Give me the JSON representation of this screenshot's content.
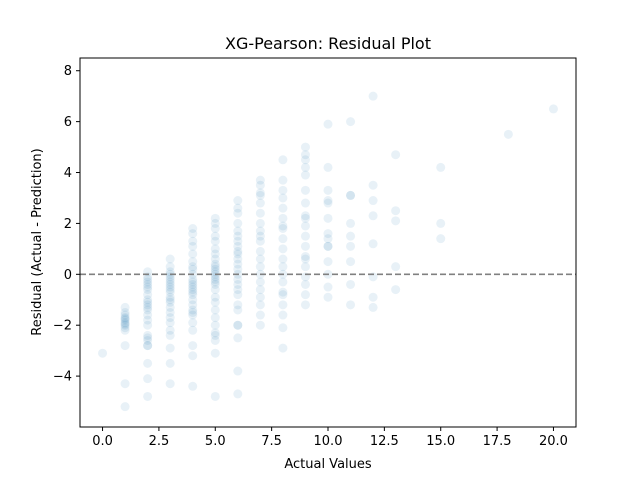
{
  "chart_data": {
    "type": "scatter",
    "title": "XG-Pearson: Residual Plot",
    "xlabel": "Actual Values",
    "ylabel": "Residual (Actual - Prediction)",
    "xlim": [
      -1,
      21
    ],
    "ylim": [
      -6,
      8.5
    ],
    "xticks": [
      0,
      2.5,
      5,
      7.5,
      10,
      12.5,
      15,
      17.5,
      20
    ],
    "xtick_labels": [
      "0.0",
      "2.5",
      "5.0",
      "7.5",
      "10.0",
      "12.5",
      "15.0",
      "17.5",
      "20.0"
    ],
    "yticks": [
      -4,
      -2,
      0,
      2,
      4,
      6,
      8
    ],
    "ytick_labels": [
      "−4",
      "−2",
      "0",
      "2",
      "4",
      "6",
      "8"
    ],
    "grid": false,
    "reference_line": {
      "y": 0,
      "style": "dashed",
      "color": "#808080"
    },
    "marker_color": "#1f77b4",
    "marker_alpha": 0.1,
    "series": [
      {
        "points": [
          [
            0,
            -3.1
          ],
          [
            1,
            -5.2
          ],
          [
            1,
            -4.3
          ],
          [
            1,
            -2.8
          ],
          [
            1,
            -2.2
          ],
          [
            1,
            -2.0
          ],
          [
            1,
            -1.9
          ],
          [
            1,
            -1.8
          ],
          [
            1,
            -1.7
          ],
          [
            1,
            -1.6
          ],
          [
            1,
            -1.5
          ],
          [
            1,
            -1.3
          ],
          [
            1,
            -2.1
          ],
          [
            1,
            -1.95
          ],
          [
            1,
            -1.75
          ],
          [
            2,
            -4.8
          ],
          [
            2,
            -4.1
          ],
          [
            2,
            -3.5
          ],
          [
            2,
            -2.8
          ],
          [
            2,
            -2.8
          ],
          [
            2,
            -2.5
          ],
          [
            2,
            -2.4
          ],
          [
            2,
            -2.0
          ],
          [
            2,
            -1.8
          ],
          [
            2,
            -1.6
          ],
          [
            2,
            -1.4
          ],
          [
            2,
            -1.3
          ],
          [
            2,
            -1.2
          ],
          [
            2,
            -1.0
          ],
          [
            2,
            -0.6
          ],
          [
            2,
            -0.4
          ],
          [
            2,
            -0.3
          ],
          [
            2,
            -0.2
          ],
          [
            2,
            -0.1
          ],
          [
            2,
            0.1
          ],
          [
            2,
            -0.5
          ],
          [
            2,
            -0.8
          ],
          [
            2,
            -1.1
          ],
          [
            2,
            -2.6
          ],
          [
            3,
            -4.3
          ],
          [
            3,
            -3.5
          ],
          [
            3,
            -2.9
          ],
          [
            3,
            -2.4
          ],
          [
            3,
            -2.2
          ],
          [
            3,
            -1.9
          ],
          [
            3,
            -1.7
          ],
          [
            3,
            -1.5
          ],
          [
            3,
            -1.3
          ],
          [
            3,
            -1.1
          ],
          [
            3,
            -0.9
          ],
          [
            3,
            -0.7
          ],
          [
            3,
            -0.6
          ],
          [
            3,
            -0.4
          ],
          [
            3,
            -0.3
          ],
          [
            3,
            -0.2
          ],
          [
            3,
            -0.1
          ],
          [
            3,
            0.0
          ],
          [
            3,
            0.1
          ],
          [
            3,
            0.3
          ],
          [
            3,
            0.6
          ],
          [
            3,
            -0.5
          ],
          [
            3,
            -1.0
          ],
          [
            4,
            -4.4
          ],
          [
            4,
            -3.2
          ],
          [
            4,
            -2.8
          ],
          [
            4,
            -2.2
          ],
          [
            4,
            -1.9
          ],
          [
            4,
            -1.6
          ],
          [
            4,
            -1.4
          ],
          [
            4,
            -1.2
          ],
          [
            4,
            -1.0
          ],
          [
            4,
            -0.8
          ],
          [
            4,
            -0.6
          ],
          [
            4,
            -0.5
          ],
          [
            4,
            -0.4
          ],
          [
            4,
            -0.3
          ],
          [
            4,
            -0.2
          ],
          [
            4,
            0.0
          ],
          [
            4,
            0.2
          ],
          [
            4,
            0.3
          ],
          [
            4,
            0.5
          ],
          [
            4,
            0.8
          ],
          [
            4,
            1.1
          ],
          [
            4,
            1.3
          ],
          [
            4,
            1.6
          ],
          [
            4,
            1.8
          ],
          [
            4,
            -0.7
          ],
          [
            4,
            -1.5
          ],
          [
            5,
            -4.8
          ],
          [
            5,
            -3.1
          ],
          [
            5,
            -2.6
          ],
          [
            5,
            -2.4
          ],
          [
            5,
            -2.3
          ],
          [
            5,
            -2.0
          ],
          [
            5,
            -1.7
          ],
          [
            5,
            -1.4
          ],
          [
            5,
            -1.1
          ],
          [
            5,
            -0.9
          ],
          [
            5,
            -0.6
          ],
          [
            5,
            -0.4
          ],
          [
            5,
            -0.3
          ],
          [
            5,
            -0.1
          ],
          [
            5,
            0.0
          ],
          [
            5,
            0.2
          ],
          [
            5,
            0.3
          ],
          [
            5,
            0.4
          ],
          [
            5,
            0.6
          ],
          [
            5,
            0.8
          ],
          [
            5,
            1.0
          ],
          [
            5,
            1.3
          ],
          [
            5,
            1.5
          ],
          [
            5,
            1.8
          ],
          [
            5,
            2.0
          ],
          [
            5,
            2.2
          ],
          [
            5,
            -0.2
          ],
          [
            5,
            0.1
          ],
          [
            6,
            -4.7
          ],
          [
            6,
            -3.8
          ],
          [
            6,
            -2.5
          ],
          [
            6,
            -2.0
          ],
          [
            6,
            -2.0
          ],
          [
            6,
            -1.4
          ],
          [
            6,
            -1.2
          ],
          [
            6,
            -0.8
          ],
          [
            6,
            -0.4
          ],
          [
            6,
            -0.2
          ],
          [
            6,
            0.0
          ],
          [
            6,
            0.2
          ],
          [
            6,
            0.4
          ],
          [
            6,
            0.6
          ],
          [
            6,
            0.9
          ],
          [
            6,
            1.1
          ],
          [
            6,
            1.3
          ],
          [
            6,
            1.5
          ],
          [
            6,
            1.7
          ],
          [
            6,
            2.0
          ],
          [
            6,
            2.4
          ],
          [
            6,
            2.6
          ],
          [
            6,
            2.9
          ],
          [
            6,
            0.8
          ],
          [
            6,
            -0.6
          ],
          [
            7,
            -2.0
          ],
          [
            7,
            -1.6
          ],
          [
            7,
            -1.2
          ],
          [
            7,
            -0.9
          ],
          [
            7,
            -0.6
          ],
          [
            7,
            -0.3
          ],
          [
            7,
            0.0
          ],
          [
            7,
            0.3
          ],
          [
            7,
            0.6
          ],
          [
            7,
            0.9
          ],
          [
            7,
            1.3
          ],
          [
            7,
            1.7
          ],
          [
            7,
            2.0
          ],
          [
            7,
            2.4
          ],
          [
            7,
            2.8
          ],
          [
            7,
            3.1
          ],
          [
            7,
            3.2
          ],
          [
            7,
            3.5
          ],
          [
            7,
            3.7
          ],
          [
            7,
            1.5
          ],
          [
            8,
            -2.9
          ],
          [
            8,
            -2.1
          ],
          [
            8,
            -1.6
          ],
          [
            8,
            -1.2
          ],
          [
            8,
            -0.8
          ],
          [
            8,
            -0.7
          ],
          [
            8,
            -0.3
          ],
          [
            8,
            0.0
          ],
          [
            8,
            0.3
          ],
          [
            8,
            0.6
          ],
          [
            8,
            1.0
          ],
          [
            8,
            1.4
          ],
          [
            8,
            1.8
          ],
          [
            8,
            2.2
          ],
          [
            8,
            2.6
          ],
          [
            8,
            3.0
          ],
          [
            8,
            3.3
          ],
          [
            8,
            3.7
          ],
          [
            8,
            4.5
          ],
          [
            8,
            1.9
          ],
          [
            9,
            -1.2
          ],
          [
            9,
            -0.8
          ],
          [
            9,
            -0.4
          ],
          [
            9,
            -0.1
          ],
          [
            9,
            0.3
          ],
          [
            9,
            0.7
          ],
          [
            9,
            1.1
          ],
          [
            9,
            1.5
          ],
          [
            9,
            1.9
          ],
          [
            9,
            2.3
          ],
          [
            9,
            2.8
          ],
          [
            9,
            3.3
          ],
          [
            9,
            3.9
          ],
          [
            9,
            4.2
          ],
          [
            9,
            4.5
          ],
          [
            9,
            4.7
          ],
          [
            9,
            5.0
          ],
          [
            9,
            0.6
          ],
          [
            9,
            2.2
          ],
          [
            10,
            -0.9
          ],
          [
            10,
            -0.5
          ],
          [
            10,
            0.0
          ],
          [
            10,
            0.5
          ],
          [
            10,
            1.1
          ],
          [
            10,
            1.1
          ],
          [
            10,
            1.6
          ],
          [
            10,
            2.2
          ],
          [
            10,
            2.8
          ],
          [
            10,
            2.9
          ],
          [
            10,
            3.3
          ],
          [
            10,
            4.2
          ],
          [
            10,
            5.9
          ],
          [
            10,
            1.4
          ],
          [
            11,
            -1.2
          ],
          [
            11,
            -0.4
          ],
          [
            11,
            0.5
          ],
          [
            11,
            1.1
          ],
          [
            11,
            1.5
          ],
          [
            11,
            2.0
          ],
          [
            11,
            3.1
          ],
          [
            11,
            3.1
          ],
          [
            11,
            6.0
          ],
          [
            12,
            -1.3
          ],
          [
            12,
            -0.9
          ],
          [
            12,
            -0.1
          ],
          [
            12,
            1.2
          ],
          [
            12,
            2.3
          ],
          [
            12,
            2.9
          ],
          [
            12,
            3.5
          ],
          [
            12,
            7.0
          ],
          [
            13,
            -0.6
          ],
          [
            13,
            0.3
          ],
          [
            13,
            2.1
          ],
          [
            13,
            2.5
          ],
          [
            13,
            4.7
          ],
          [
            15,
            1.4
          ],
          [
            15,
            2.0
          ],
          [
            15,
            4.2
          ],
          [
            18,
            5.5
          ],
          [
            20,
            6.5
          ]
        ]
      }
    ]
  }
}
